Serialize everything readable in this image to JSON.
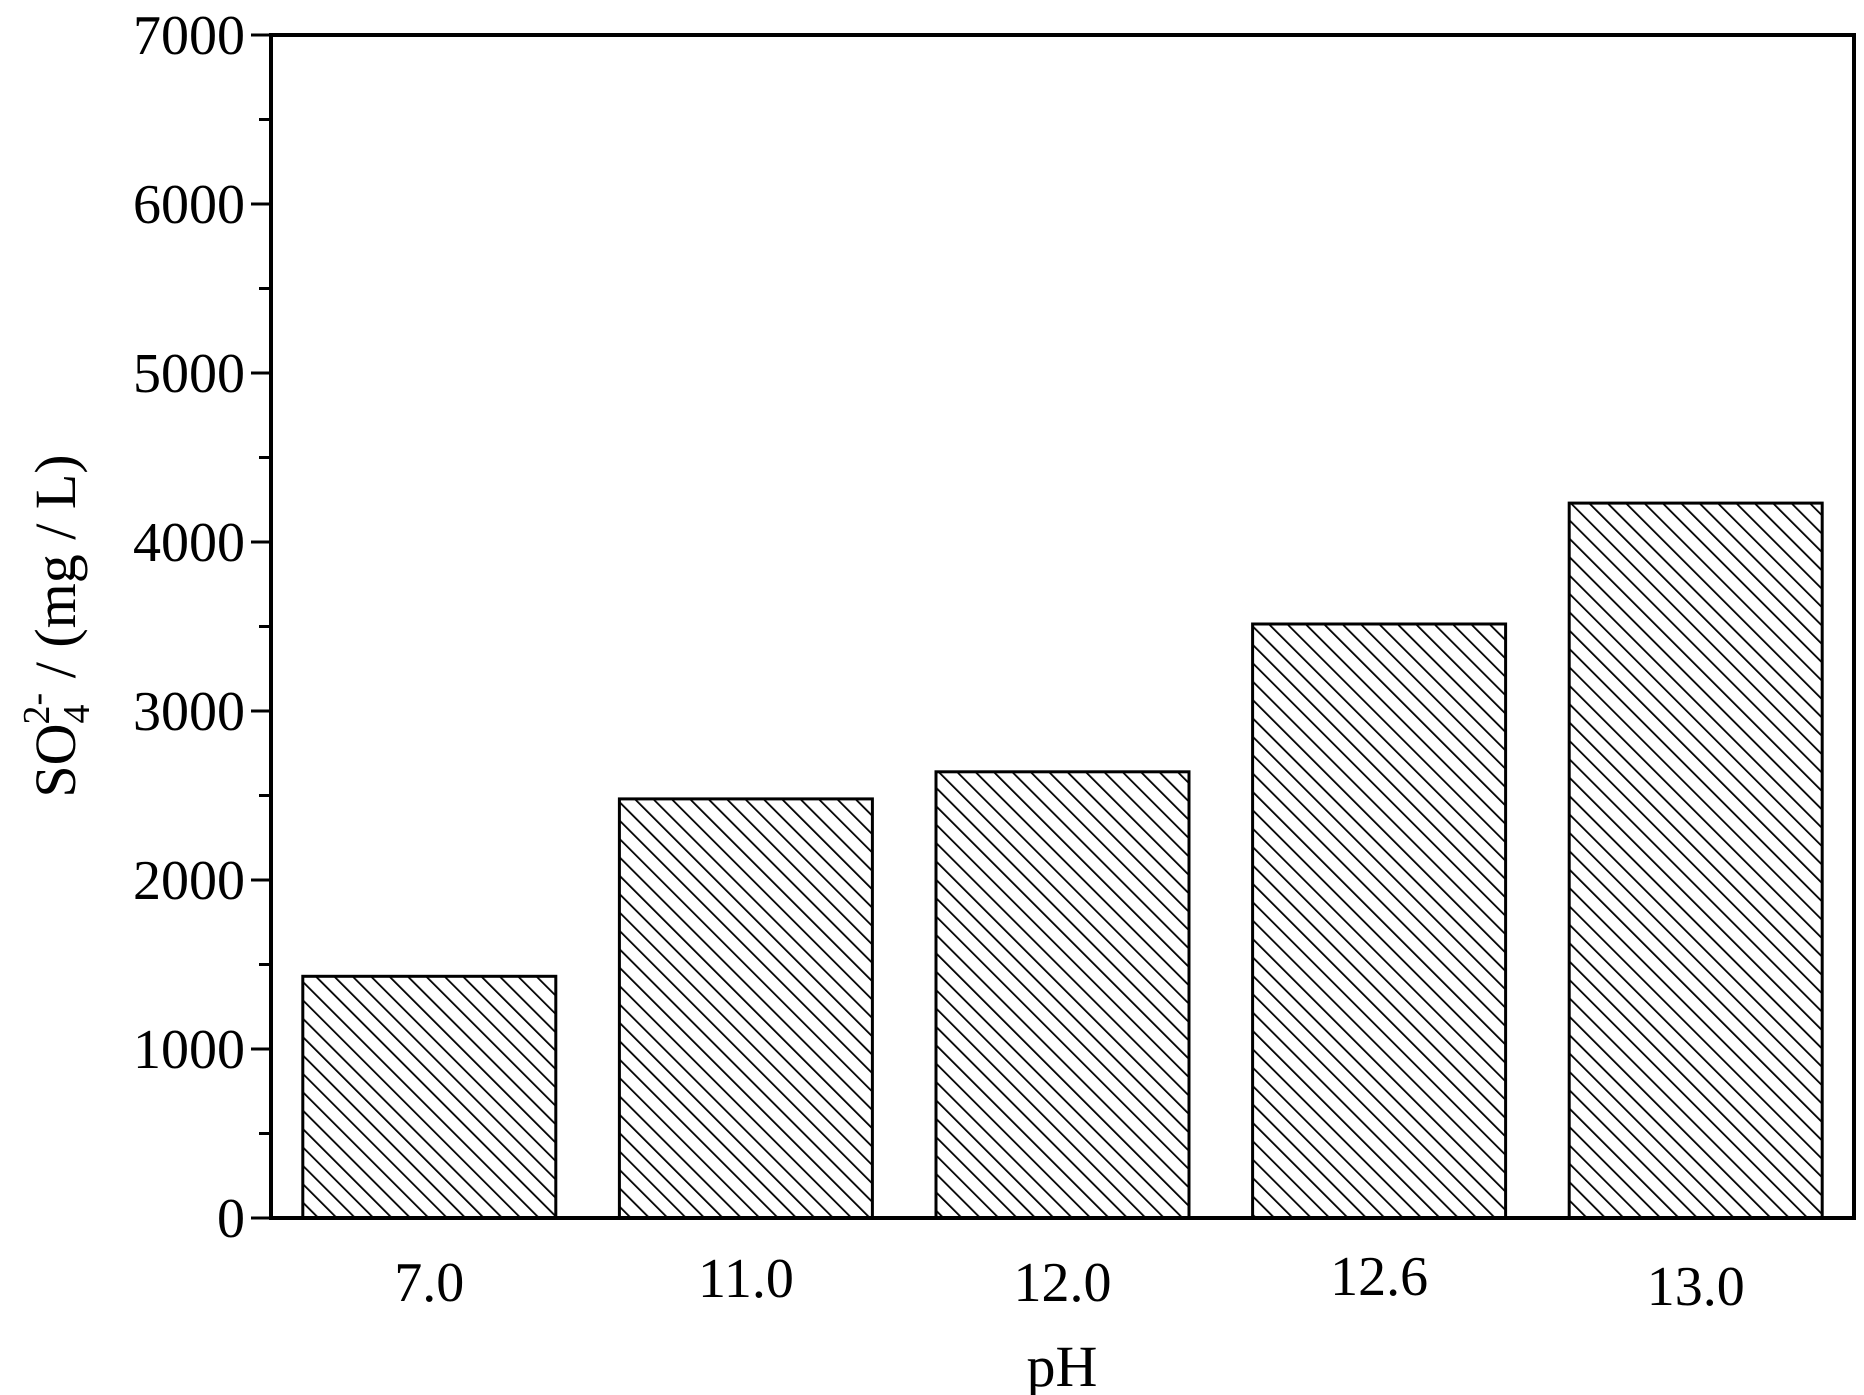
{
  "chart_data": {
    "type": "bar",
    "categories": [
      "7.0",
      "11.0",
      "12.0",
      "12.6",
      "13.0"
    ],
    "values": [
      1430,
      2480,
      2640,
      3515,
      4230
    ],
    "xlabel": "pH",
    "ylabel": {
      "prefix": "SO",
      "subscript": "4",
      "superscript": "2-",
      "suffix": " / (mg / L)"
    },
    "ylim": [
      0,
      7000
    ],
    "yticks": [
      "0",
      "1000",
      "2000",
      "3000",
      "4000",
      "5000",
      "6000",
      "7000"
    ],
    "yminor_step": 500,
    "grid": false,
    "legend": "none",
    "bar_fill": "diagonal-hatch",
    "colors": {
      "axis": "#000000",
      "bar_edge": "#000000",
      "hatch": "#000000",
      "background": "#ffffff"
    }
  }
}
